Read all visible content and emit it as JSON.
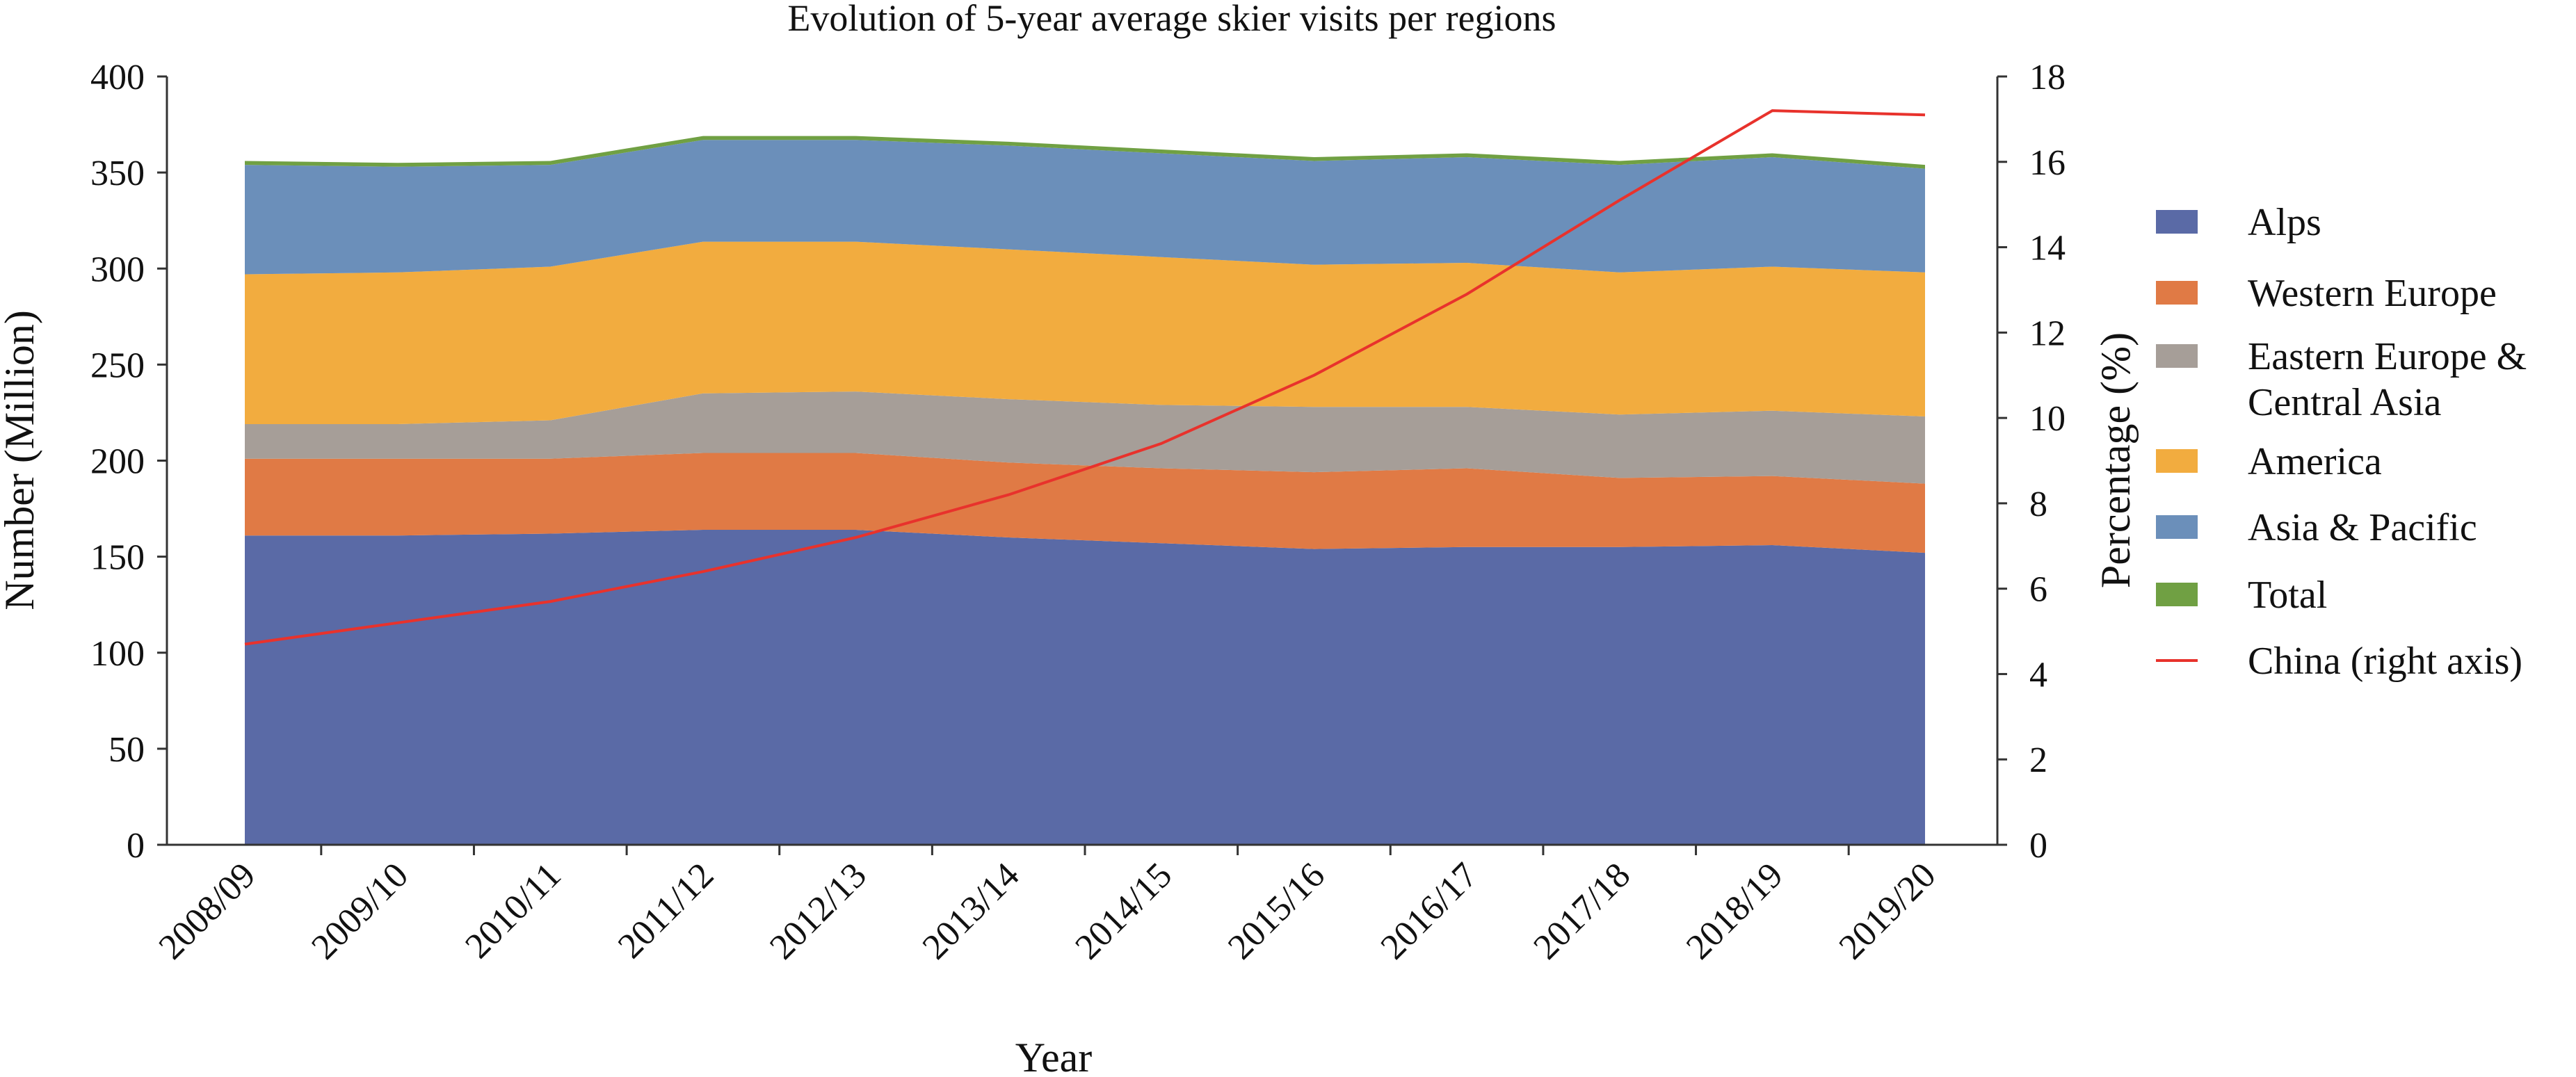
{
  "chart_data": {
    "type": "area",
    "title": "Evolution of 5-year average skier visits per regions",
    "xlabel": "Year",
    "ylabel": "Number (Million)",
    "y2label": "Percentage (%)",
    "categories": [
      "2008/09",
      "2009/10",
      "2010/11",
      "2011/12",
      "2012/13",
      "2013/14",
      "2014/15",
      "2015/16",
      "2016/17",
      "2017/18",
      "2018/19",
      "2019/20"
    ],
    "ylim": [
      0,
      400
    ],
    "y_ticks": [
      "0",
      "50",
      "100",
      "150",
      "200",
      "250",
      "300",
      "350",
      "400"
    ],
    "y2lim": [
      0,
      18
    ],
    "y2_ticks": [
      "0",
      "2",
      "4",
      "6",
      "8",
      "10",
      "12",
      "14",
      "16",
      "18"
    ],
    "stacked": true,
    "series": [
      {
        "name": "Alps",
        "color": "#5a6aa6",
        "values": [
          161,
          161,
          162,
          164,
          164,
          160,
          157,
          154,
          155,
          155,
          156,
          152
        ]
      },
      {
        "name": "Western Europe",
        "color": "#e07a45",
        "values": [
          40,
          40,
          39,
          40,
          40,
          39,
          39,
          40,
          41,
          36,
          36,
          36
        ]
      },
      {
        "name": "Eastern Europe & Central Asia",
        "color": "#a69e98",
        "values": [
          18,
          18,
          20,
          31,
          32,
          33,
          33,
          34,
          32,
          33,
          34,
          35
        ]
      },
      {
        "name": "America",
        "color": "#f2ac3f",
        "values": [
          78,
          79,
          80,
          79,
          78,
          78,
          77,
          74,
          75,
          74,
          75,
          75
        ]
      },
      {
        "name": "Asia & Pacific",
        "color": "#6b8fba",
        "values": [
          57,
          55,
          53,
          53,
          53,
          54,
          54,
          54,
          55,
          56,
          57,
          54
        ]
      },
      {
        "name": "Total",
        "color": "#70a043",
        "values": [
          2,
          2,
          2,
          2,
          2,
          2,
          2,
          2,
          2,
          2,
          2,
          2
        ]
      }
    ],
    "line_series": {
      "name": "China (right axis)",
      "color": "#e8322c",
      "axis": "right",
      "values": [
        4.7,
        5.2,
        5.7,
        6.4,
        7.2,
        8.2,
        9.4,
        11.0,
        12.9,
        15.1,
        17.2,
        17.1
      ]
    },
    "legend_position": "right",
    "grid": false
  }
}
